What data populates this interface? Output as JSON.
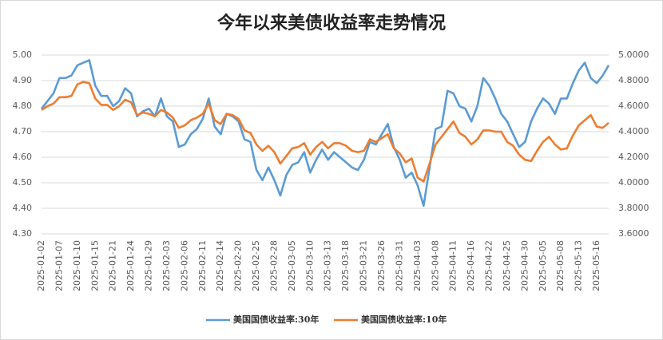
{
  "chart_data": {
    "type": "line",
    "title": "今年以来美债收益率走势情况",
    "categories": [
      "2025-01-02",
      null,
      null,
      "2025-01-07",
      null,
      null,
      "2025-01-10",
      null,
      null,
      "2025-01-15",
      null,
      null,
      "2025-01-21",
      null,
      null,
      "2025-01-24",
      null,
      null,
      "2025-01-29",
      null,
      null,
      "2025-02-03",
      null,
      null,
      "2025-02-06",
      null,
      null,
      "2025-02-11",
      null,
      null,
      "2025-02-14",
      null,
      null,
      "2025-02-20",
      null,
      null,
      "2025-02-25",
      null,
      null,
      "2025-02-28",
      null,
      null,
      "2025-03-05",
      null,
      null,
      "2025-03-10",
      null,
      null,
      "2025-03-13",
      null,
      null,
      "2025-03-18",
      null,
      null,
      "2025-03-21",
      null,
      null,
      "2025-03-26",
      null,
      null,
      "2025-03-31",
      null,
      null,
      "2025-04-03",
      null,
      null,
      "2025-04-08",
      null,
      null,
      "2025-04-11",
      null,
      null,
      "2025-04-16",
      null,
      null,
      "2025-04-22",
      null,
      null,
      "2025-04-25",
      null,
      null,
      "2025-04-30",
      null,
      null,
      "2025-05-05",
      null,
      null,
      "2025-05-08",
      null,
      null,
      "2025-05-13",
      null,
      null,
      "2025-05-16",
      null,
      null
    ],
    "series": [
      {
        "name": "美国国债收益率:30年",
        "color": "#5b9bd5",
        "values": [
          4.79,
          4.82,
          4.85,
          4.91,
          4.91,
          4.92,
          4.96,
          4.97,
          4.98,
          4.88,
          4.84,
          4.84,
          4.8,
          4.82,
          4.87,
          4.85,
          4.76,
          4.78,
          4.79,
          4.76,
          4.83,
          4.76,
          4.74,
          4.64,
          4.65,
          4.69,
          4.71,
          4.75,
          4.83,
          4.72,
          4.69,
          4.77,
          4.76,
          4.74,
          4.67,
          4.66,
          4.55,
          4.51,
          4.56,
          4.51,
          4.45,
          4.53,
          4.57,
          4.58,
          4.62,
          4.54,
          4.59,
          4.63,
          4.59,
          4.62,
          4.6,
          4.58,
          4.56,
          4.55,
          4.59,
          4.66,
          4.65,
          4.69,
          4.73,
          4.64,
          4.59,
          4.52,
          4.54,
          4.49,
          4.41,
          4.56,
          4.71,
          4.72,
          4.86,
          4.85,
          4.8,
          4.79,
          4.74,
          4.8,
          4.91,
          4.88,
          4.83,
          4.77,
          4.74,
          4.69,
          4.64,
          4.66,
          4.74,
          4.79,
          4.83,
          4.81,
          4.77,
          4.83,
          4.83,
          4.89,
          4.94,
          4.97,
          4.91,
          4.89,
          4.92,
          4.96
        ]
      },
      {
        "name": "美国国债收益率:10年",
        "color": "#ed7d31",
        "axis": "y2",
        "values": [
          4.57,
          4.6,
          4.62,
          4.67,
          4.67,
          4.68,
          4.77,
          4.79,
          4.78,
          4.66,
          4.61,
          4.61,
          4.57,
          4.6,
          4.65,
          4.63,
          4.53,
          4.55,
          4.54,
          4.52,
          4.57,
          4.55,
          4.51,
          4.43,
          4.45,
          4.49,
          4.51,
          4.54,
          4.62,
          4.49,
          4.46,
          4.54,
          4.53,
          4.5,
          4.41,
          4.39,
          4.3,
          4.25,
          4.29,
          4.24,
          4.15,
          4.21,
          4.27,
          4.28,
          4.31,
          4.22,
          4.28,
          4.32,
          4.27,
          4.31,
          4.31,
          4.29,
          4.25,
          4.24,
          4.25,
          4.34,
          4.32,
          4.35,
          4.38,
          4.27,
          4.23,
          4.16,
          4.19,
          4.04,
          4.01,
          4.15,
          4.3,
          4.36,
          4.42,
          4.48,
          4.39,
          4.36,
          4.3,
          4.34,
          4.41,
          4.41,
          4.4,
          4.4,
          4.32,
          4.29,
          4.22,
          4.18,
          4.17,
          4.25,
          4.32,
          4.36,
          4.3,
          4.26,
          4.27,
          4.37,
          4.45,
          4.49,
          4.53,
          4.44,
          4.43,
          4.47
        ]
      }
    ],
    "ylim": [
      4.3,
      5.0
    ],
    "yticks": [
      {
        "value": 4.3,
        "label": "4.30"
      },
      {
        "value": 4.4,
        "label": "4.40"
      },
      {
        "value": 4.5,
        "label": "4.50"
      },
      {
        "value": 4.6,
        "label": "4.60"
      },
      {
        "value": 4.7,
        "label": "4.70"
      },
      {
        "value": 4.8,
        "label": "4.80"
      },
      {
        "value": 4.9,
        "label": "4.90"
      },
      {
        "value": 5.0,
        "label": "5.00"
      }
    ],
    "y2lim": [
      3.6,
      5.0
    ],
    "y2ticks": [
      {
        "value": 3.6,
        "label": "3.6000"
      },
      {
        "value": 3.8,
        "label": "3.8000"
      },
      {
        "value": 4.0,
        "label": "4.0000"
      },
      {
        "value": 4.2,
        "label": "4.2000"
      },
      {
        "value": 4.4,
        "label": "4.4000"
      },
      {
        "value": 4.6,
        "label": "4.6000"
      },
      {
        "value": 4.8,
        "label": "4.8000"
      },
      {
        "value": 5.0,
        "label": "5.0000"
      }
    ],
    "grid": true,
    "legend": "bottom"
  }
}
